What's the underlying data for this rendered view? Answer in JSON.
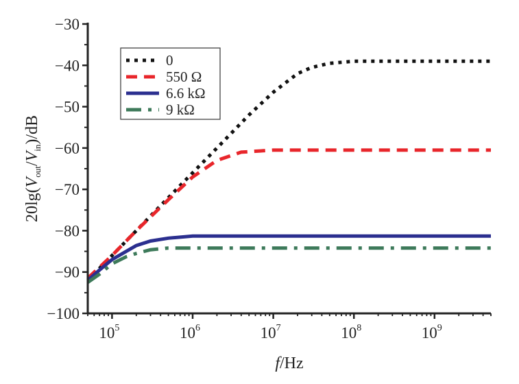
{
  "chart_data": {
    "type": "line",
    "title": "",
    "xscale": "log",
    "xlim": [
      50000,
      5000000000
    ],
    "ylim": [
      -100,
      -30
    ],
    "xlabel": {
      "italic": "f",
      "rest": "/Hz"
    },
    "ylabel": {
      "pre": "20lg(",
      "v1": "V",
      "s1": "out",
      "mid": "/",
      "v2": "V",
      "s2": "in",
      "post": ")/dB"
    },
    "x_ticks": [
      {
        "value": 100000,
        "base": "10",
        "exp": "5"
      },
      {
        "value": 1000000,
        "base": "10",
        "exp": "6"
      },
      {
        "value": 10000000,
        "base": "10",
        "exp": "7"
      },
      {
        "value": 100000000,
        "base": "10",
        "exp": "8"
      },
      {
        "value": 1000000000,
        "base": "10",
        "exp": "9"
      }
    ],
    "y_ticks": [
      -30,
      -40,
      -50,
      -60,
      -70,
      -80,
      -90,
      -100
    ],
    "y_tick_labels": [
      "−30",
      "−40",
      "−50",
      "−60",
      "−70",
      "−80",
      "−90",
      "−100"
    ],
    "legend_position": "top-left",
    "grid": false,
    "series": [
      {
        "name": "0",
        "color": "#111111",
        "style": "dotted",
        "x": [
          50000,
          100000,
          200000,
          500000,
          1000000,
          2000000,
          5000000,
          10000000,
          20000000,
          30000000,
          50000000,
          100000000,
          5000000000
        ],
        "y": [
          -92,
          -86,
          -80,
          -72,
          -66,
          -60,
          -52,
          -46.5,
          -42,
          -40.5,
          -39.5,
          -39,
          -39
        ]
      },
      {
        "name": "550 Ω",
        "color": "#e8262b",
        "style": "dashed",
        "x": [
          50000,
          100000,
          200000,
          500000,
          1000000,
          2000000,
          4000000,
          10000000,
          5000000000
        ],
        "y": [
          -91.5,
          -86,
          -80,
          -72.5,
          -67,
          -63,
          -61,
          -60.5,
          -60.5
        ]
      },
      {
        "name": "6.6 kΩ",
        "color": "#2b2f8f",
        "style": "solid",
        "x": [
          50000,
          70000,
          100000,
          150000,
          200000,
          300000,
          500000,
          1000000,
          5000000000
        ],
        "y": [
          -92,
          -89.5,
          -87,
          -85,
          -83.6,
          -82.5,
          -81.8,
          -81.3,
          -81.3
        ]
      },
      {
        "name": "9 kΩ",
        "color": "#3d7a5a",
        "style": "dashdot",
        "x": [
          50000,
          70000,
          100000,
          150000,
          200000,
          300000,
          500000,
          5000000000
        ],
        "y": [
          -92.5,
          -90.5,
          -88,
          -86.3,
          -85.5,
          -84.6,
          -84.2,
          -84.2
        ]
      }
    ]
  }
}
